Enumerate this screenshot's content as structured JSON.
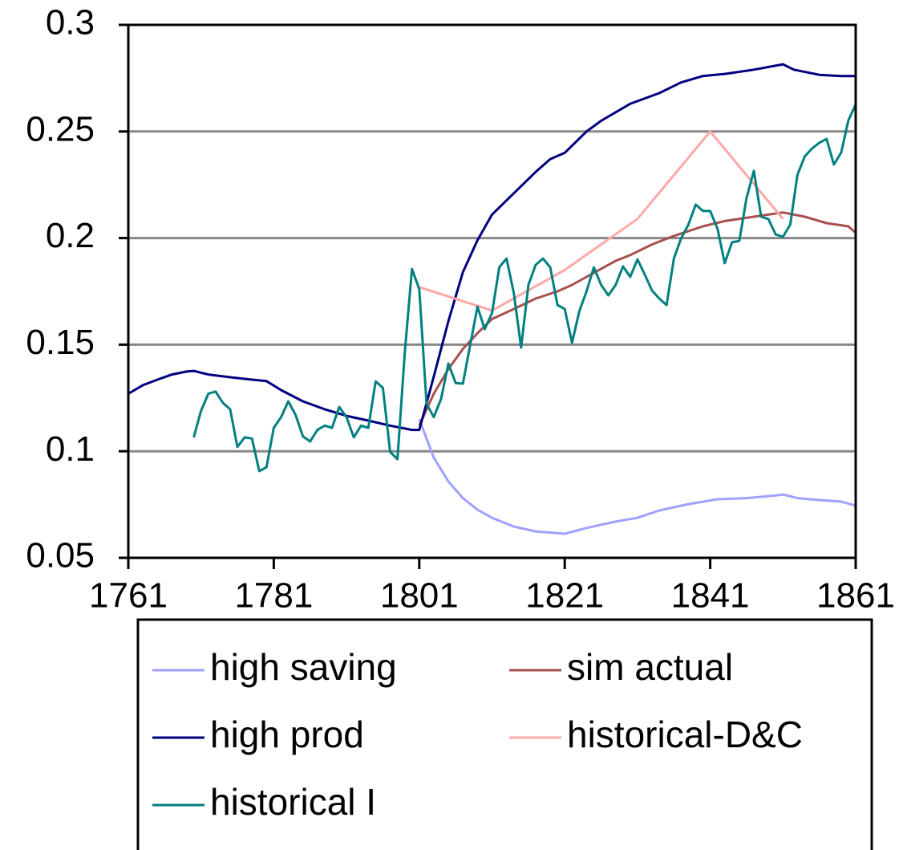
{
  "chart_data": {
    "type": "line",
    "xlim": [
      1761,
      1861
    ],
    "xticks": [
      1761,
      1781,
      1801,
      1821,
      1841,
      1861
    ],
    "ylim": [
      0.05,
      0.3
    ],
    "yticks": [
      0.05,
      0.1,
      0.15,
      0.2,
      0.25,
      0.3
    ],
    "grid": true,
    "legend": "bottom",
    "series": [
      {
        "name": "high saving",
        "color": "#a0a0ff",
        "x": [
          1801,
          1803,
          1805,
          1807,
          1809,
          1811,
          1814,
          1817,
          1821,
          1824,
          1828,
          1831,
          1834,
          1838,
          1842,
          1846,
          1850,
          1851,
          1853,
          1856,
          1859,
          1861
        ],
        "values": [
          0.115,
          0.097,
          0.0858,
          0.078,
          0.0726,
          0.0688,
          0.0647,
          0.0624,
          0.0613,
          0.064,
          0.067,
          0.0688,
          0.0722,
          0.0752,
          0.0775,
          0.078,
          0.0793,
          0.0797,
          0.078,
          0.0771,
          0.0764,
          0.0745
        ]
      },
      {
        "name": "sim actual",
        "color": "#a85050",
        "x": [
          1801,
          1803,
          1805,
          1807,
          1809,
          1811,
          1814,
          1817,
          1820,
          1822,
          1825,
          1828,
          1830,
          1833,
          1836,
          1840,
          1843,
          1847,
          1851,
          1854,
          1857,
          1860,
          1861
        ],
        "values": [
          0.112,
          0.127,
          0.1385,
          0.148,
          0.1554,
          0.162,
          0.1667,
          0.1716,
          0.175,
          0.178,
          0.1837,
          0.1893,
          0.192,
          0.197,
          0.201,
          0.2055,
          0.208,
          0.21,
          0.212,
          0.21,
          0.207,
          0.2055,
          0.2025
        ]
      },
      {
        "name": "high prod",
        "color": "#000080",
        "x": [
          1761,
          1763,
          1765,
          1767,
          1769,
          1770,
          1772,
          1775,
          1778,
          1780,
          1782,
          1785,
          1788,
          1791,
          1794,
          1797,
          1800,
          1801,
          1803,
          1805,
          1807,
          1809,
          1811,
          1814,
          1817,
          1819,
          1821,
          1824,
          1826,
          1830,
          1834,
          1837,
          1840,
          1843,
          1847,
          1851,
          1852.5,
          1856,
          1859,
          1861
        ],
        "values": [
          0.127,
          0.131,
          0.1336,
          0.136,
          0.1374,
          0.1377,
          0.136,
          0.1347,
          0.1336,
          0.1329,
          0.1287,
          0.1234,
          0.1197,
          0.1166,
          0.1144,
          0.112,
          0.11,
          0.11,
          0.135,
          0.161,
          0.184,
          0.199,
          0.211,
          0.221,
          0.231,
          0.237,
          0.24,
          0.25,
          0.255,
          0.263,
          0.268,
          0.273,
          0.276,
          0.277,
          0.279,
          0.2815,
          0.279,
          0.2766,
          0.276,
          0.276
        ]
      },
      {
        "name": "historical-D&C",
        "color": "#ffa8a8",
        "x": [
          1801,
          1811,
          1821,
          1831,
          1841,
          1851
        ],
        "values": [
          0.177,
          0.166,
          0.185,
          0.209,
          0.25,
          0.209
        ]
      },
      {
        "name": "historical I",
        "color": "#008080",
        "x": [
          1770,
          1771,
          1772,
          1773,
          1774,
          1775,
          1776,
          1777,
          1778,
          1779,
          1780,
          1781,
          1782,
          1783,
          1784,
          1785,
          1786,
          1787,
          1788,
          1789,
          1790,
          1791,
          1792,
          1793,
          1794,
          1795,
          1796,
          1797,
          1798,
          1799,
          1800,
          1801,
          1802,
          1803,
          1804,
          1805,
          1806,
          1807,
          1808,
          1809,
          1810,
          1811,
          1812,
          1813,
          1814,
          1815,
          1816,
          1817,
          1818,
          1819,
          1820,
          1821,
          1822,
          1823,
          1824,
          1825,
          1826,
          1827,
          1828,
          1829,
          1830,
          1831,
          1832,
          1833,
          1834,
          1835,
          1836,
          1837,
          1838,
          1839,
          1840,
          1841,
          1842,
          1843,
          1844,
          1845,
          1846,
          1847,
          1848,
          1849,
          1850,
          1851,
          1852,
          1853,
          1854,
          1855,
          1856,
          1857,
          1858,
          1859,
          1860,
          1861
        ],
        "values": [
          0.1065,
          0.119,
          0.127,
          0.128,
          0.1227,
          0.1197,
          0.102,
          0.1065,
          0.106,
          0.0907,
          0.0925,
          0.111,
          0.116,
          0.1234,
          0.117,
          0.107,
          0.1046,
          0.11,
          0.112,
          0.111,
          0.1208,
          0.116,
          0.1065,
          0.112,
          0.111,
          0.1328,
          0.1298,
          0.0997,
          0.0963,
          0.146,
          0.1855,
          0.1761,
          0.1223,
          0.116,
          0.1246,
          0.1411,
          0.132,
          0.1317,
          0.1498,
          0.1678,
          0.1573,
          0.1648,
          0.1863,
          0.1904,
          0.1742,
          0.1486,
          0.178,
          0.1874,
          0.1904,
          0.1863,
          0.1686,
          0.1667,
          0.1509,
          0.1656,
          0.175,
          0.1863,
          0.178,
          0.1731,
          0.178,
          0.1867,
          0.1818,
          0.19,
          0.1829,
          0.1754,
          0.1716,
          0.1686,
          0.1904,
          0.1999,
          0.2063,
          0.2157,
          0.2127,
          0.2127,
          0.2044,
          0.1882,
          0.198,
          0.1987,
          0.2188,
          0.2315,
          0.21,
          0.2089,
          0.2017,
          0.2006,
          0.2063,
          0.2297,
          0.2383,
          0.242,
          0.2447,
          0.2465,
          0.2345,
          0.2401,
          0.2552,
          0.2627
        ]
      }
    ]
  }
}
